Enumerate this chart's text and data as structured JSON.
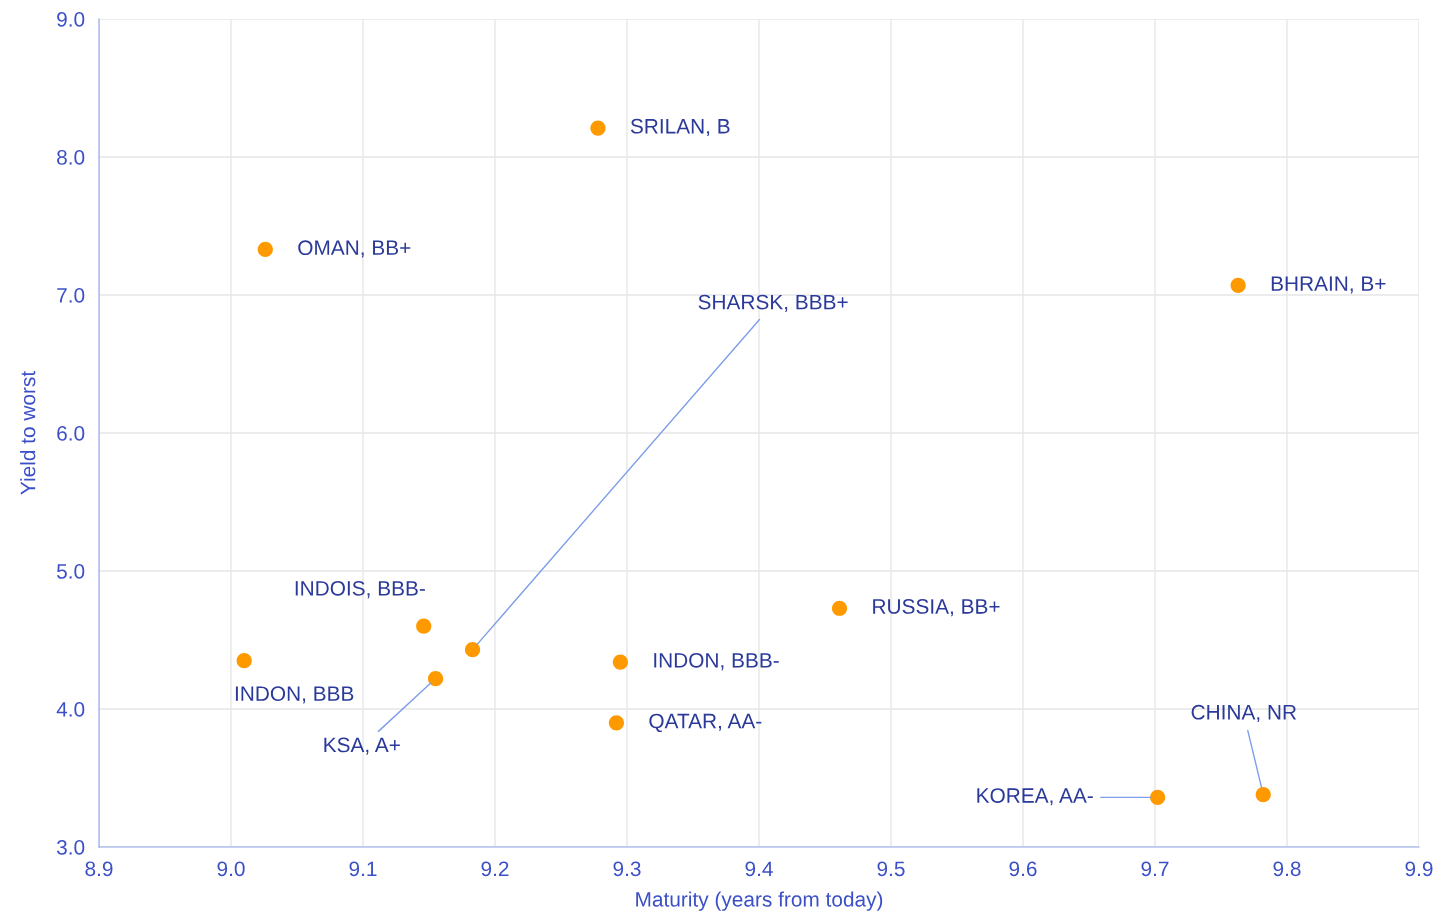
{
  "chart_data": {
    "type": "scatter",
    "xlabel": "Maturity (years from today)",
    "ylabel": "Yield to worst",
    "x": [
      9.278,
      9.026,
      9.763,
      9.183,
      9.146,
      9.01,
      9.155,
      9.295,
      9.292,
      9.461,
      9.702,
      9.782
    ],
    "series": [
      {
        "color": "#ff9900",
        "values": [
          8.21,
          7.33,
          7.07,
          4.43,
          4.6,
          4.35,
          4.22,
          4.34,
          3.9,
          4.73,
          3.36,
          3.38
        ]
      }
    ],
    "annotations": [
      {
        "text": "SRILAN, B",
        "x": 9.278,
        "y": 8.21
      },
      {
        "text": "OMAN, BB+",
        "x": 9.026,
        "y": 7.33
      },
      {
        "text": "BHRAIN, B+",
        "x": 9.763,
        "y": 7.07
      },
      {
        "text": "SHARSK, BBB+",
        "x": 9.183,
        "y": 4.43
      },
      {
        "text": "INDOIS, BBB-",
        "x": 9.146,
        "y": 4.6
      },
      {
        "text": "INDON, BBB",
        "x": 9.01,
        "y": 4.35
      },
      {
        "text": "KSA, A+",
        "x": 9.155,
        "y": 4.22
      },
      {
        "text": "INDON, BBB-",
        "x": 9.295,
        "y": 4.34
      },
      {
        "text": "QATAR, AA-",
        "x": 9.292,
        "y": 3.9
      },
      {
        "text": "RUSSIA, BB+",
        "x": 9.461,
        "y": 4.73
      },
      {
        "text": "KOREA, AA-",
        "x": 9.702,
        "y": 3.36
      },
      {
        "text": "CHINA, NR",
        "x": 9.782,
        "y": 3.38
      }
    ],
    "xlim": [
      8.9,
      9.9
    ],
    "xticks": [
      8.9,
      {
        "value": 9.0,
        "label": "9.0"
      },
      9.1,
      9.2,
      9.3,
      9.4,
      9.5,
      9.6,
      9.7,
      9.8,
      9.9
    ],
    "ylim": [
      3.0,
      9.0
    ],
    "yticks": [
      {
        "value": 3.0,
        "label": "3.0"
      },
      {
        "value": 4.0,
        "label": "4.0"
      },
      {
        "value": 5.0,
        "label": "5.0"
      },
      {
        "value": 6.0,
        "label": "6.0"
      },
      {
        "value": 7.0,
        "label": "7.0"
      },
      {
        "value": 8.0,
        "label": "8.0"
      },
      {
        "value": 9.0,
        "label": "9.0"
      }
    ],
    "grid": true,
    "marker": "circle"
  }
}
